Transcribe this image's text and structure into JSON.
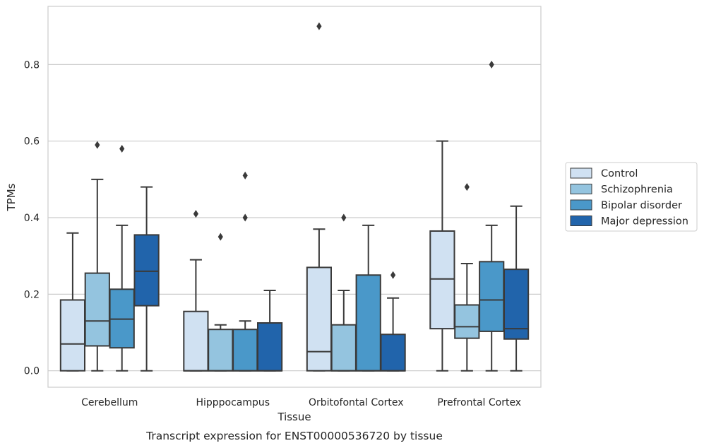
{
  "chart_data": {
    "type": "box",
    "categories": [
      "Cerebellum",
      "Hipppocampus",
      "Orbitofontal Cortex",
      "Prefrontal Cortex"
    ],
    "xlabel": "Tissue",
    "ylabel": "TPMs",
    "caption": "Transcript expression for ENST00000536720 by tissue",
    "ylim": [
      -0.043,
      0.952
    ],
    "yticks": [
      0.0,
      0.2,
      0.4,
      0.6,
      0.8
    ],
    "ytick_labels": [
      "0.0",
      "0.2",
      "0.4",
      "0.6",
      "0.8"
    ],
    "grid": "horizontal",
    "legend_position": "center-right",
    "series": [
      {
        "name": "Control",
        "color": "#d0e1f2",
        "boxes": [
          {
            "min": 0.0,
            "q1": 0.0,
            "median": 0.07,
            "q3": 0.185,
            "max": 0.36,
            "outliers": []
          },
          {
            "min": 0.0,
            "q1": 0.0,
            "median": 0.0,
            "q3": 0.155,
            "max": 0.29,
            "outliers": [
              0.41
            ]
          },
          {
            "min": 0.0,
            "q1": 0.0,
            "median": 0.05,
            "q3": 0.27,
            "max": 0.37,
            "outliers": [
              0.9
            ]
          },
          {
            "min": 0.0,
            "q1": 0.11,
            "median": 0.24,
            "q3": 0.365,
            "max": 0.6,
            "outliers": []
          }
        ]
      },
      {
        "name": "Schizophrenia",
        "color": "#94c4df",
        "boxes": [
          {
            "min": 0.0,
            "q1": 0.065,
            "median": 0.13,
            "q3": 0.255,
            "max": 0.5,
            "outliers": [
              0.59
            ]
          },
          {
            "min": 0.0,
            "q1": 0.0,
            "median": 0.0,
            "q3": 0.108,
            "max": 0.12,
            "outliers": [
              0.35
            ]
          },
          {
            "min": 0.0,
            "q1": 0.0,
            "median": 0.0,
            "q3": 0.12,
            "max": 0.21,
            "outliers": [
              0.4
            ]
          },
          {
            "min": 0.0,
            "q1": 0.085,
            "median": 0.115,
            "q3": 0.172,
            "max": 0.28,
            "outliers": [
              0.48
            ]
          }
        ]
      },
      {
        "name": "Bipolar disorder",
        "color": "#4a98c9",
        "boxes": [
          {
            "min": 0.0,
            "q1": 0.06,
            "median": 0.135,
            "q3": 0.213,
            "max": 0.38,
            "outliers": [
              0.58
            ]
          },
          {
            "min": 0.0,
            "q1": 0.0,
            "median": 0.0,
            "q3": 0.108,
            "max": 0.13,
            "outliers": [
              0.51,
              0.4
            ]
          },
          {
            "min": 0.0,
            "q1": 0.0,
            "median": 0.0,
            "q3": 0.25,
            "max": 0.38,
            "outliers": []
          },
          {
            "min": 0.0,
            "q1": 0.103,
            "median": 0.185,
            "q3": 0.285,
            "max": 0.38,
            "outliers": [
              0.8
            ]
          }
        ]
      },
      {
        "name": "Major depression",
        "color": "#2164ab",
        "boxes": [
          {
            "min": 0.0,
            "q1": 0.17,
            "median": 0.26,
            "q3": 0.355,
            "max": 0.48,
            "outliers": []
          },
          {
            "min": 0.0,
            "q1": 0.0,
            "median": 0.0,
            "q3": 0.125,
            "max": 0.21,
            "outliers": []
          },
          {
            "min": 0.0,
            "q1": 0.0,
            "median": 0.0,
            "q3": 0.095,
            "max": 0.19,
            "outliers": [
              0.25
            ]
          },
          {
            "min": 0.0,
            "q1": 0.083,
            "median": 0.11,
            "q3": 0.265,
            "max": 0.43,
            "outliers": []
          }
        ]
      }
    ]
  }
}
